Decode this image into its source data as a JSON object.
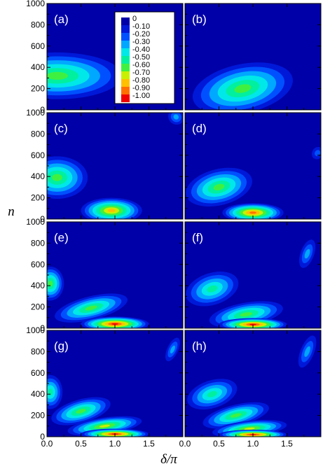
{
  "chart_data": {
    "type": "heatmap",
    "xlabel": "δ/π",
    "ylabel": "n",
    "xlim": [
      0.0,
      2.0
    ],
    "ylim": [
      0,
      1000
    ],
    "x_ticks": [
      "0.0",
      "0.5",
      "1.0",
      "1.5"
    ],
    "y_ticks": [
      "0",
      "200",
      "400",
      "600",
      "800",
      "1000"
    ],
    "legend": {
      "placement": "inside panel (a), top-right",
      "levels": [
        "0",
        "-0.10",
        "-0.20",
        "-0.30",
        "-0.40",
        "-0.50",
        "-0.60",
        "-0.70",
        "-0.80",
        "-0.90",
        "-1.00"
      ],
      "colors": [
        "#0000a8",
        "#0018d8",
        "#0050ff",
        "#00a8ff",
        "#00e8e8",
        "#00f0a0",
        "#40f040",
        "#c8f000",
        "#ffc000",
        "#ff7000",
        "#f00000"
      ]
    },
    "panels": [
      {
        "label": "(a)",
        "blobs": [
          {
            "cx": 0.15,
            "cy": 320,
            "rx": 0.95,
            "ry": 220,
            "rot": 0,
            "peak": 0.55
          }
        ]
      },
      {
        "label": "(b)",
        "blobs": [
          {
            "cx": 0.85,
            "cy": 200,
            "rx": 0.75,
            "ry": 230,
            "rot": 12,
            "peak": 0.58
          }
        ]
      },
      {
        "label": "(c)",
        "blobs": [
          {
            "cx": 0.15,
            "cy": 390,
            "rx": 0.45,
            "ry": 200,
            "rot": 0,
            "peak": 0.56
          },
          {
            "cx": 0.95,
            "cy": 80,
            "rx": 0.45,
            "ry": 120,
            "rot": 0,
            "peak": 0.78
          },
          {
            "cx": 1.9,
            "cy": 960,
            "rx": 0.12,
            "ry": 70,
            "rot": -40,
            "peak": 0.3
          }
        ]
      },
      {
        "label": "(d)",
        "blobs": [
          {
            "cx": 0.5,
            "cy": 300,
            "rx": 0.5,
            "ry": 170,
            "rot": 14,
            "peak": 0.56
          },
          {
            "cx": 1.0,
            "cy": 60,
            "rx": 0.45,
            "ry": 90,
            "rot": 0,
            "peak": 0.9
          },
          {
            "cx": 1.95,
            "cy": 620,
            "rx": 0.08,
            "ry": 60,
            "rot": -30,
            "peak": 0.22
          }
        ]
      },
      {
        "label": "(e)",
        "blobs": [
          {
            "cx": 0.05,
            "cy": 420,
            "rx": 0.2,
            "ry": 160,
            "rot": 0,
            "peak": 0.56
          },
          {
            "cx": 0.65,
            "cy": 190,
            "rx": 0.55,
            "ry": 110,
            "rot": 14,
            "peak": 0.62
          },
          {
            "cx": 1.0,
            "cy": 40,
            "rx": 0.5,
            "ry": 70,
            "rot": 0,
            "peak": 0.95
          }
        ]
      },
      {
        "label": "(f)",
        "blobs": [
          {
            "cx": 0.4,
            "cy": 370,
            "rx": 0.4,
            "ry": 150,
            "rot": 18,
            "peak": 0.5
          },
          {
            "cx": 0.9,
            "cy": 130,
            "rx": 0.55,
            "ry": 110,
            "rot": 10,
            "peak": 0.62
          },
          {
            "cx": 1.0,
            "cy": 35,
            "rx": 0.5,
            "ry": 60,
            "rot": 0,
            "peak": 0.97
          },
          {
            "cx": 1.8,
            "cy": 700,
            "rx": 0.1,
            "ry": 140,
            "rot": -20,
            "peak": 0.25
          }
        ]
      },
      {
        "label": "(g)",
        "blobs": [
          {
            "cx": 0.05,
            "cy": 420,
            "rx": 0.18,
            "ry": 160,
            "rot": 0,
            "peak": 0.5
          },
          {
            "cx": 0.5,
            "cy": 240,
            "rx": 0.45,
            "ry": 110,
            "rot": 16,
            "peak": 0.55
          },
          {
            "cx": 0.85,
            "cy": 100,
            "rx": 0.55,
            "ry": 80,
            "rot": 8,
            "peak": 0.7
          },
          {
            "cx": 1.0,
            "cy": 25,
            "rx": 0.5,
            "ry": 50,
            "rot": 0,
            "peak": 0.98
          },
          {
            "cx": 1.85,
            "cy": 820,
            "rx": 0.08,
            "ry": 120,
            "rot": -25,
            "peak": 0.3
          }
        ]
      },
      {
        "label": "(h)",
        "blobs": [
          {
            "cx": 0.4,
            "cy": 400,
            "rx": 0.38,
            "ry": 130,
            "rot": 18,
            "peak": 0.45
          },
          {
            "cx": 0.75,
            "cy": 200,
            "rx": 0.5,
            "ry": 100,
            "rot": 14,
            "peak": 0.55
          },
          {
            "cx": 0.95,
            "cy": 75,
            "rx": 0.55,
            "ry": 75,
            "rot": 6,
            "peak": 0.72
          },
          {
            "cx": 1.0,
            "cy": 20,
            "rx": 0.5,
            "ry": 45,
            "rot": 0,
            "peak": 0.98
          },
          {
            "cx": 1.8,
            "cy": 800,
            "rx": 0.1,
            "ry": 160,
            "rot": -22,
            "peak": 0.32
          }
        ]
      }
    ]
  }
}
